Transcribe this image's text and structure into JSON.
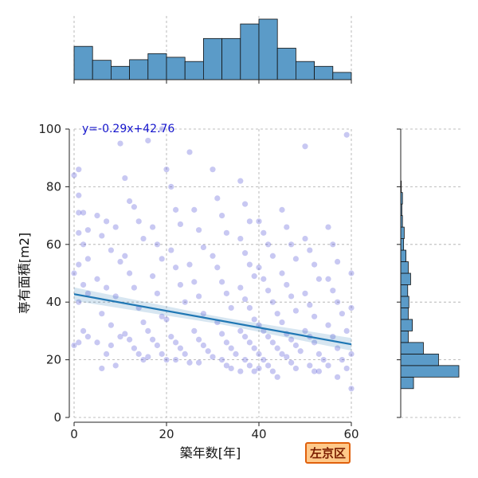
{
  "chart_data": {
    "type": "scatter",
    "xlabel": "築年数[年]",
    "ylabel": "専有面積[m2]",
    "xlim": [
      0,
      60
    ],
    "ylim": [
      0,
      100
    ],
    "x_ticks": [
      "0",
      "20",
      "40",
      "60"
    ],
    "y_ticks": [
      "0",
      "20",
      "40",
      "60",
      "80",
      "100"
    ],
    "grid": true,
    "regression": {
      "label": "y=-0.29x+42.76",
      "slope": -0.29,
      "intercept": 42.76,
      "color": "#1f77b4"
    },
    "point_color": "#3a3ad0",
    "hist_color": "#5b9bc8",
    "x_histogram": {
      "bin_edges": [
        0,
        4,
        8,
        12,
        16,
        20,
        24,
        28,
        32,
        36,
        40,
        44,
        48,
        52,
        56,
        60
      ],
      "counts": [
        55,
        32,
        22,
        33,
        43,
        37,
        30,
        68,
        68,
        92,
        100,
        52,
        30,
        22,
        12
      ]
    },
    "y_histogram": {
      "bin_edges": [
        10,
        14,
        18,
        22,
        26,
        30,
        34,
        38,
        42,
        46,
        50,
        54,
        58,
        62,
        66,
        70,
        74,
        78,
        82,
        86
      ],
      "counts": [
        22,
        100,
        65,
        39,
        13,
        20,
        13,
        14,
        12,
        17,
        13,
        9,
        5,
        6,
        3,
        2,
        3,
        1,
        0
      ]
    },
    "sample_points": [
      [
        1,
        86
      ],
      [
        0,
        84
      ],
      [
        1,
        77
      ],
      [
        1,
        71
      ],
      [
        2,
        71
      ],
      [
        3,
        65
      ],
      [
        1,
        64
      ],
      [
        2,
        60
      ],
      [
        3,
        55
      ],
      [
        1,
        53
      ],
      [
        0,
        50
      ],
      [
        2,
        46
      ],
      [
        3,
        43
      ],
      [
        1,
        40
      ],
      [
        2,
        30
      ],
      [
        1,
        26
      ],
      [
        0,
        25
      ],
      [
        3,
        28
      ],
      [
        5,
        70
      ],
      [
        7,
        68
      ],
      [
        9,
        66
      ],
      [
        6,
        63
      ],
      [
        8,
        58
      ],
      [
        10,
        54
      ],
      [
        5,
        48
      ],
      [
        7,
        45
      ],
      [
        9,
        42
      ],
      [
        6,
        36
      ],
      [
        8,
        32
      ],
      [
        10,
        28
      ],
      [
        5,
        26
      ],
      [
        7,
        22
      ],
      [
        9,
        18
      ],
      [
        6,
        17
      ],
      [
        8,
        25
      ],
      [
        10,
        95
      ],
      [
        11,
        83
      ],
      [
        12,
        75
      ],
      [
        13,
        73
      ],
      [
        14,
        68
      ],
      [
        15,
        62
      ],
      [
        11,
        56
      ],
      [
        12,
        50
      ],
      [
        13,
        45
      ],
      [
        14,
        38
      ],
      [
        15,
        33
      ],
      [
        11,
        29
      ],
      [
        12,
        27
      ],
      [
        13,
        24
      ],
      [
        14,
        22
      ],
      [
        15,
        20
      ],
      [
        16,
        96
      ],
      [
        17,
        66
      ],
      [
        18,
        60
      ],
      [
        19,
        55
      ],
      [
        17,
        49
      ],
      [
        18,
        43
      ],
      [
        19,
        35
      ],
      [
        16,
        30
      ],
      [
        17,
        27
      ],
      [
        18,
        25
      ],
      [
        19,
        22
      ],
      [
        16,
        21
      ],
      [
        20,
        20
      ],
      [
        19,
        100
      ],
      [
        20,
        86
      ],
      [
        21,
        80
      ],
      [
        22,
        72
      ],
      [
        23,
        67
      ],
      [
        21,
        58
      ],
      [
        22,
        52
      ],
      [
        23,
        46
      ],
      [
        24,
        40
      ],
      [
        20,
        34
      ],
      [
        21,
        28
      ],
      [
        22,
        26
      ],
      [
        23,
        24
      ],
      [
        24,
        22
      ],
      [
        25,
        19
      ],
      [
        22,
        20
      ],
      [
        25,
        92
      ],
      [
        26,
        72
      ],
      [
        27,
        65
      ],
      [
        28,
        59
      ],
      [
        25,
        53
      ],
      [
        26,
        47
      ],
      [
        27,
        42
      ],
      [
        28,
        36
      ],
      [
        26,
        30
      ],
      [
        27,
        27
      ],
      [
        28,
        25
      ],
      [
        29,
        23
      ],
      [
        30,
        21
      ],
      [
        27,
        19
      ],
      [
        30,
        86
      ],
      [
        31,
        76
      ],
      [
        32,
        70
      ],
      [
        33,
        64
      ],
      [
        30,
        56
      ],
      [
        31,
        52
      ],
      [
        32,
        47
      ],
      [
        33,
        43
      ],
      [
        34,
        38
      ],
      [
        31,
        33
      ],
      [
        32,
        29
      ],
      [
        33,
        26
      ],
      [
        34,
        24
      ],
      [
        35,
        22
      ],
      [
        32,
        20
      ],
      [
        33,
        18
      ],
      [
        34,
        17
      ],
      [
        36,
        82
      ],
      [
        37,
        74
      ],
      [
        38,
        68
      ],
      [
        36,
        62
      ],
      [
        37,
        57
      ],
      [
        38,
        53
      ],
      [
        39,
        49
      ],
      [
        36,
        45
      ],
      [
        37,
        41
      ],
      [
        38,
        38
      ],
      [
        39,
        34
      ],
      [
        36,
        30
      ],
      [
        37,
        28
      ],
      [
        38,
        26
      ],
      [
        39,
        24
      ],
      [
        40,
        22
      ],
      [
        37,
        20
      ],
      [
        38,
        18
      ],
      [
        39,
        16
      ],
      [
        36,
        16
      ],
      [
        40,
        68
      ],
      [
        41,
        64
      ],
      [
        42,
        60
      ],
      [
        43,
        56
      ],
      [
        40,
        52
      ],
      [
        41,
        48
      ],
      [
        42,
        44
      ],
      [
        43,
        40
      ],
      [
        44,
        36
      ],
      [
        40,
        32
      ],
      [
        41,
        30
      ],
      [
        42,
        28
      ],
      [
        43,
        26
      ],
      [
        44,
        24
      ],
      [
        45,
        22
      ],
      [
        41,
        20
      ],
      [
        42,
        18
      ],
      [
        43,
        16
      ],
      [
        44,
        14
      ],
      [
        40,
        17
      ],
      [
        45,
        72
      ],
      [
        46,
        66
      ],
      [
        47,
        60
      ],
      [
        48,
        55
      ],
      [
        45,
        50
      ],
      [
        46,
        46
      ],
      [
        47,
        42
      ],
      [
        48,
        37
      ],
      [
        45,
        33
      ],
      [
        46,
        29
      ],
      [
        47,
        27
      ],
      [
        48,
        25
      ],
      [
        49,
        23
      ],
      [
        46,
        21
      ],
      [
        47,
        19
      ],
      [
        48,
        17
      ],
      [
        50,
        62
      ],
      [
        51,
        58
      ],
      [
        52,
        53
      ],
      [
        53,
        48
      ],
      [
        50,
        43
      ],
      [
        51,
        39
      ],
      [
        52,
        35
      ],
      [
        50,
        30
      ],
      [
        51,
        28
      ],
      [
        52,
        26
      ],
      [
        53,
        22
      ],
      [
        54,
        20
      ],
      [
        51,
        18
      ],
      [
        52,
        16
      ],
      [
        53,
        16
      ],
      [
        50,
        94
      ],
      [
        55,
        66
      ],
      [
        56,
        60
      ],
      [
        57,
        54
      ],
      [
        55,
        48
      ],
      [
        56,
        44
      ],
      [
        57,
        40
      ],
      [
        58,
        36
      ],
      [
        55,
        32
      ],
      [
        56,
        28
      ],
      [
        57,
        24
      ],
      [
        58,
        20
      ],
      [
        55,
        18
      ],
      [
        57,
        14
      ],
      [
        59,
        98
      ],
      [
        60,
        50
      ],
      [
        60,
        38
      ],
      [
        59,
        30
      ],
      [
        60,
        22
      ],
      [
        59,
        17
      ],
      [
        60,
        10
      ]
    ]
  },
  "badge": {
    "label": "左京区",
    "bg_color": "#ffc98a",
    "border_color": "#e0600c"
  }
}
